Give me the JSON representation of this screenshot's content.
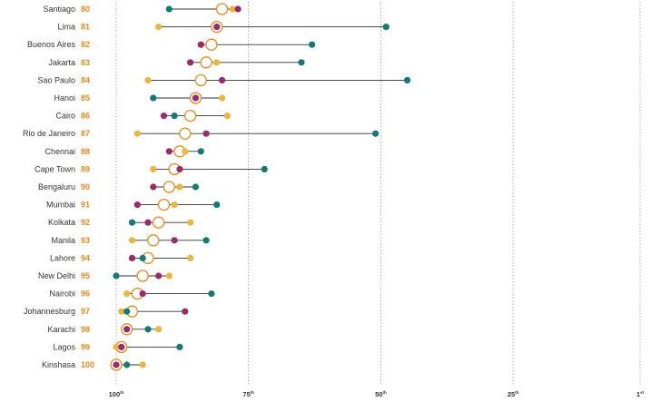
{
  "chart_data": {
    "type": "dot",
    "x_axis": {
      "range": [
        100,
        1
      ],
      "ticks": [
        {
          "value": 100,
          "label": "100",
          "suffix": "th"
        },
        {
          "value": 75,
          "label": "75",
          "suffix": "th"
        },
        {
          "value": 50,
          "label": "50",
          "suffix": "th"
        },
        {
          "value": 25,
          "label": "25",
          "suffix": "th"
        },
        {
          "value": 1,
          "label": "1",
          "suffix": "st"
        }
      ],
      "gridlines": "dotted"
    },
    "colors": {
      "overall": "#e8891c",
      "purple": "#9b2a6b",
      "teal": "#137a76",
      "yellow": "#ecb53c",
      "line": "#333333",
      "rank_text": "#e8891c",
      "grid": "#9a9a9a"
    },
    "rows": [
      {
        "city": "Santiago",
        "rank": 80,
        "overall": 80,
        "teal": 90,
        "yellow": 78,
        "purple": 77
      },
      {
        "city": "Lima",
        "rank": 81,
        "overall": 81,
        "yellow": 92,
        "purple": 81,
        "teal": 49
      },
      {
        "city": "Buenos Aires",
        "rank": 82,
        "overall": 82,
        "yellow": 84,
        "purple": 84,
        "teal": 63
      },
      {
        "city": "Jakarta",
        "rank": 83,
        "overall": 83,
        "purple": 86,
        "yellow": 81,
        "teal": 65
      },
      {
        "city": "Sao Paulo",
        "rank": 84,
        "overall": 84,
        "yellow": 94,
        "purple": 80,
        "teal": 45
      },
      {
        "city": "Hanoi",
        "rank": 85,
        "overall": 85,
        "teal": 93,
        "purple": 85,
        "yellow": 80
      },
      {
        "city": "Cairo",
        "rank": 86,
        "overall": 86,
        "purple": 91,
        "teal": 89,
        "yellow": 79
      },
      {
        "city": "Rio de Janeiro",
        "rank": 87,
        "overall": 87,
        "yellow": 96,
        "purple": 83,
        "teal": 51
      },
      {
        "city": "Chennai",
        "rank": 88,
        "overall": 88,
        "purple": 90,
        "yellow": 87,
        "teal": 84
      },
      {
        "city": "Cape Town",
        "rank": 89,
        "overall": 89,
        "yellow": 93,
        "purple": 88,
        "teal": 72
      },
      {
        "city": "Bengaluru",
        "rank": 90,
        "overall": 90,
        "purple": 93,
        "yellow": 88,
        "teal": 85
      },
      {
        "city": "Mumbai",
        "rank": 91,
        "overall": 91,
        "purple": 96,
        "yellow": 89,
        "teal": 81
      },
      {
        "city": "Kolkata",
        "rank": 92,
        "overall": 92,
        "teal": 97,
        "purple": 94,
        "yellow": 86
      },
      {
        "city": "Manila",
        "rank": 93,
        "overall": 93,
        "yellow": 97,
        "purple": 89,
        "teal": 83
      },
      {
        "city": "Lahore",
        "rank": 94,
        "overall": 94,
        "purple": 97,
        "teal": 95,
        "yellow": 86
      },
      {
        "city": "New Delhi",
        "rank": 95,
        "overall": 95,
        "teal": 100,
        "purple": 92,
        "yellow": 90
      },
      {
        "city": "Nairobi",
        "rank": 96,
        "overall": 96,
        "yellow": 98,
        "purple": 95,
        "teal": 82
      },
      {
        "city": "Johannesburg",
        "rank": 97,
        "overall": 97,
        "yellow": 99,
        "teal": 98,
        "purple": 87
      },
      {
        "city": "Karachi",
        "rank": 98,
        "overall": 98,
        "purple": 98,
        "teal": 94,
        "yellow": 92
      },
      {
        "city": "Lagos",
        "rank": 99,
        "overall": 99,
        "yellow": 100,
        "purple": 99,
        "teal": 88
      },
      {
        "city": "Kinshasa",
        "rank": 100,
        "overall": 100,
        "purple": 100,
        "teal": 98,
        "yellow": 95
      }
    ]
  }
}
